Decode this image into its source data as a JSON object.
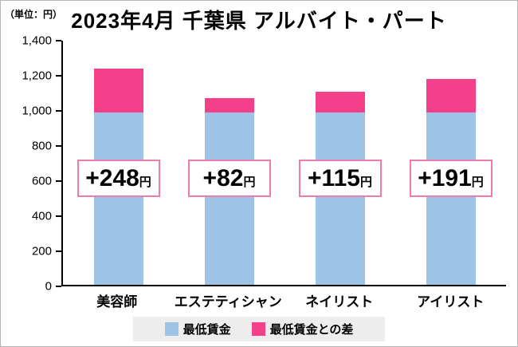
{
  "unit_label": "（単位：円）",
  "title": "2023年4月 千葉県 アルバイト・パート",
  "colors": {
    "bar_blue": "#9dc3e6",
    "bar_pink": "#f43f8a",
    "label_box_border": "#ee7bab",
    "legend_bg": "#ededed",
    "axis": "#000000"
  },
  "chart_data": {
    "type": "bar",
    "stacked": true,
    "title": "2023年4月 千葉県 アルバイト・パート",
    "unit": "円",
    "categories": [
      "美容師",
      "エステティシャン",
      "ネイリスト",
      "アイリスト"
    ],
    "series": [
      {
        "name": "最低賃金",
        "color": "#9dc3e6",
        "values": [
          984,
          984,
          984,
          984
        ]
      },
      {
        "name": "最低賃金との差",
        "color": "#f43f8a",
        "values": [
          248,
          82,
          115,
          191
        ]
      }
    ],
    "totals": [
      1232,
      1066,
      1099,
      1175
    ],
    "bar_labels": [
      {
        "value": "+248",
        "suffix": "円"
      },
      {
        "value": "+82",
        "suffix": "円"
      },
      {
        "value": "+115",
        "suffix": "円"
      },
      {
        "value": "+191",
        "suffix": "円"
      }
    ],
    "ylim": [
      0,
      1400
    ],
    "ytick_interval": 200,
    "ytick_labels": [
      "0",
      "200",
      "400",
      "600",
      "800",
      "1,000",
      "1,200",
      "1,400"
    ],
    "grid": false,
    "legend_position": "bottom",
    "legend": [
      {
        "label": "最低賃金",
        "color": "#9dc3e6"
      },
      {
        "label": "最低賃金との差",
        "color": "#f43f8a"
      }
    ]
  }
}
